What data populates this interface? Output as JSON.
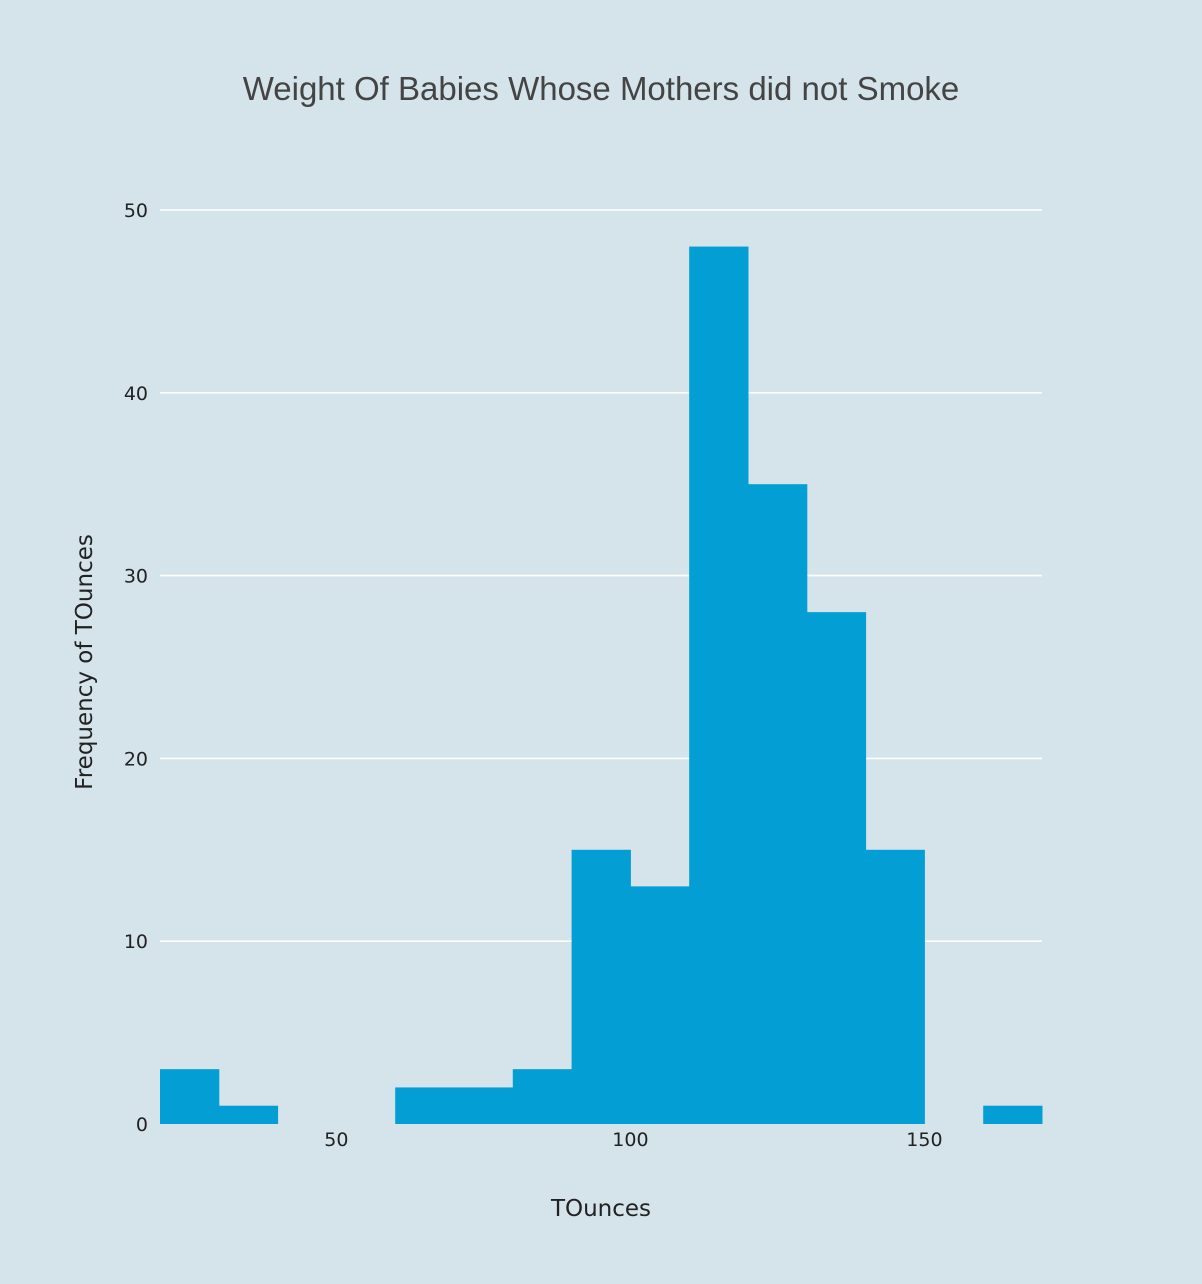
{
  "chart_data": {
    "type": "bar",
    "title": "Weight Of Babies Whose Mothers did not Smoke",
    "xlabel": "TOunces",
    "ylabel": "Frequency of TOunces",
    "bin_width": 10,
    "bins": [
      {
        "start": 20,
        "end": 30,
        "count": 3
      },
      {
        "start": 30,
        "end": 40,
        "count": 1
      },
      {
        "start": 40,
        "end": 50,
        "count": 0
      },
      {
        "start": 50,
        "end": 60,
        "count": 0
      },
      {
        "start": 60,
        "end": 70,
        "count": 2
      },
      {
        "start": 70,
        "end": 80,
        "count": 2
      },
      {
        "start": 80,
        "end": 90,
        "count": 3
      },
      {
        "start": 90,
        "end": 100,
        "count": 15
      },
      {
        "start": 100,
        "end": 110,
        "count": 13
      },
      {
        "start": 110,
        "end": 120,
        "count": 48
      },
      {
        "start": 120,
        "end": 130,
        "count": 35
      },
      {
        "start": 130,
        "end": 140,
        "count": 28
      },
      {
        "start": 140,
        "end": 150,
        "count": 15
      },
      {
        "start": 150,
        "end": 160,
        "count": 0
      },
      {
        "start": 160,
        "end": 170,
        "count": 1
      }
    ],
    "xlim": [
      20,
      170
    ],
    "ylim": [
      0,
      52
    ],
    "x_ticks": [
      50,
      100,
      150
    ],
    "y_ticks": [
      0,
      10,
      20,
      30,
      40,
      50
    ],
    "grid": "horizontal",
    "bar_color": "#039ed4",
    "background_color": "#d5e3eb"
  }
}
